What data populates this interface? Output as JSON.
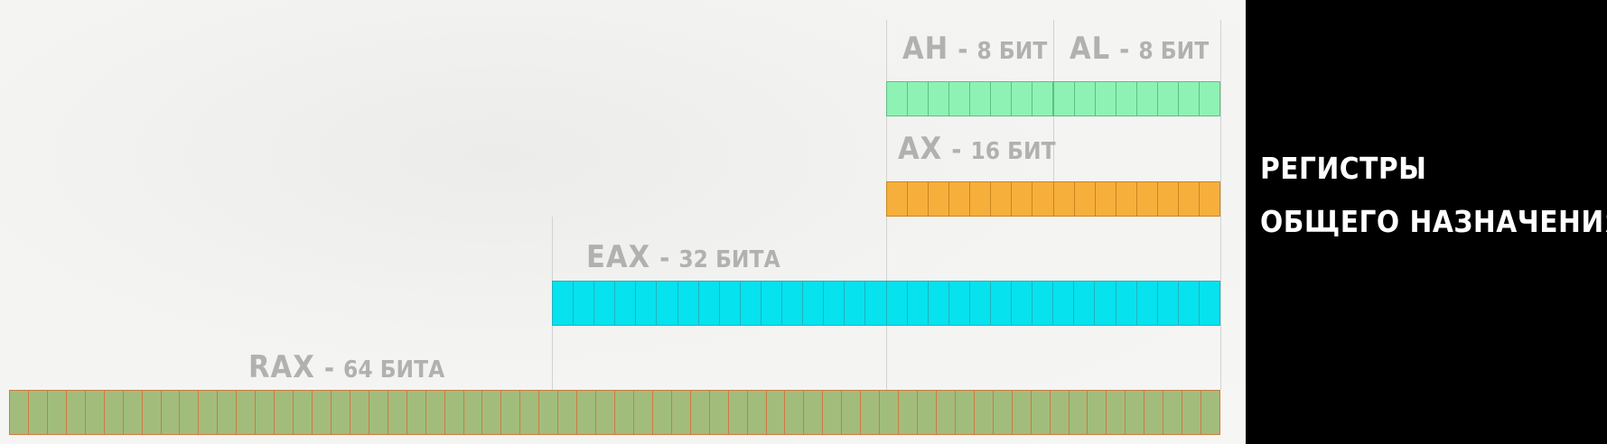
{
  "title": {
    "line1": "РЕГИСТРЫ",
    "line2": "ОБЩЕГО НАЗНАЧЕНИЯ"
  },
  "registers": {
    "ah": {
      "name": "AH",
      "bits_label": "8 БИТ",
      "bits": 8,
      "color": "#8ef2b4",
      "border": "#5fbe86"
    },
    "al": {
      "name": "AL",
      "bits_label": "8 БИТ",
      "bits": 8,
      "color": "#8ef2b4",
      "border": "#5fbe86"
    },
    "ax": {
      "name": "AX",
      "bits_label": "16 БИТ",
      "bits": 16,
      "color": "#f7af3c",
      "border": "#c98620"
    },
    "eax": {
      "name": "EAX",
      "bits_label": "32 БИТА",
      "bits": 32,
      "color": "#06e2ee",
      "border": "#1fb3bd"
    },
    "rax": {
      "name": "RAX",
      "bits_label": "64 БИТА",
      "bits": 64,
      "color": "#a2bd7b",
      "border": "#cd7a45"
    }
  },
  "dash": "-",
  "colors": {
    "label_text": "#b1b1af",
    "side_panel": "#000000",
    "side_text": "#ffffff"
  }
}
